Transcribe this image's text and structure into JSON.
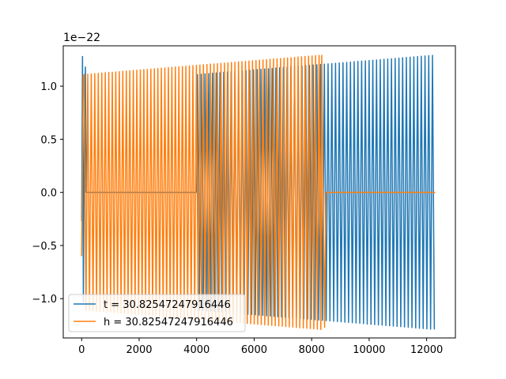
{
  "chart_data": {
    "type": "line",
    "title": "",
    "xlabel": "",
    "ylabel": "",
    "y_offset_text": "1e−22",
    "y_scale": 1e-22,
    "xlim": [
      -640,
      13000
    ],
    "ylim": [
      -1.37,
      1.38
    ],
    "x_ticks": [
      0,
      2000,
      4000,
      6000,
      8000,
      10000,
      12000
    ],
    "x_tick_labels": [
      "0",
      "2000",
      "4000",
      "6000",
      "8000",
      "10000",
      "12000"
    ],
    "y_ticks": [
      -1.0,
      -0.5,
      0.0,
      0.5,
      1.0
    ],
    "y_tick_labels": [
      "−1.0",
      "−0.5",
      "0.0",
      "0.5",
      "1.0"
    ],
    "grid": false,
    "legend_position": "lower-left",
    "series": [
      {
        "name": "t = 30.82547247916446",
        "color": "#1f77b4",
        "segments": [
          {
            "kind": "spike",
            "x": [
              0,
              30,
              60,
              90,
              130,
              160
            ],
            "y": [
              -0.27,
              1.28,
              -1.03,
              0.6,
              1.18,
              0.0
            ]
          },
          {
            "kind": "flat",
            "x": [
              160,
              4000
            ],
            "y": 0.0
          },
          {
            "kind": "oscillation",
            "x_start": 4000,
            "x_end": 12300,
            "cycles": 64,
            "amp_start": 1.11,
            "amp_end": 1.29
          }
        ]
      },
      {
        "name": "h = 30.82547247916446",
        "color": "#ff7f0e",
        "segments": [
          {
            "kind": "spike",
            "x": [
              0,
              20,
              60
            ],
            "y": [
              -0.6,
              0.0,
              1.1
            ]
          },
          {
            "kind": "oscillation",
            "x_start": 60,
            "x_end": 8350,
            "cycles": 68,
            "amp_start": 1.11,
            "amp_end": 1.29
          },
          {
            "kind": "line",
            "x": [
              8350,
              8450,
              8500
            ],
            "y": [
              1.29,
              -1.27,
              0.0
            ]
          },
          {
            "kind": "flat",
            "x": [
              8500,
              12300
            ],
            "y": 0.0
          }
        ]
      }
    ]
  }
}
